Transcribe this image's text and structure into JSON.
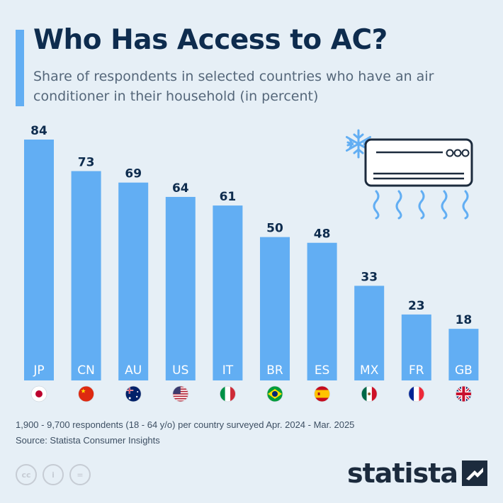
{
  "title": "Who Has Access to AC?",
  "subtitle": "Share of respondents in selected countries who have an air conditioner in their household (in percent)",
  "chart_data": {
    "type": "bar",
    "categories": [
      "JP",
      "CN",
      "AU",
      "US",
      "IT",
      "BR",
      "ES",
      "MX",
      "FR",
      "GB"
    ],
    "values": [
      84,
      73,
      69,
      64,
      61,
      50,
      48,
      33,
      23,
      18
    ],
    "flags": [
      "japan",
      "china",
      "australia",
      "usa",
      "italy",
      "brazil",
      "spain",
      "mexico",
      "france",
      "uk"
    ],
    "ylim": [
      0,
      84
    ],
    "grid": false,
    "bar_color": "#62aef3",
    "value_label_color": "#0e2c4e",
    "category_label_color": "#ffffff"
  },
  "illustration": {
    "icons": [
      "snowflake-icon",
      "air-conditioner-icon",
      "airflow-icon"
    ],
    "color": "#62aef3"
  },
  "footer": {
    "note": "1,900 - 9,700 respondents (18 - 64 y/o) per country surveyed Apr. 2024 - Mar. 2025",
    "source": "Source: Statista Consumer Insights",
    "license_icons": [
      "cc-icon",
      "attribution-icon",
      "no-derivatives-icon"
    ],
    "license_glyphs": [
      "cc",
      "i",
      "="
    ],
    "brand": "statista"
  },
  "colors": {
    "background": "#e6eff6",
    "accent": "#62aef3",
    "title": "#0e2c4e",
    "text": "#3d4f63"
  }
}
